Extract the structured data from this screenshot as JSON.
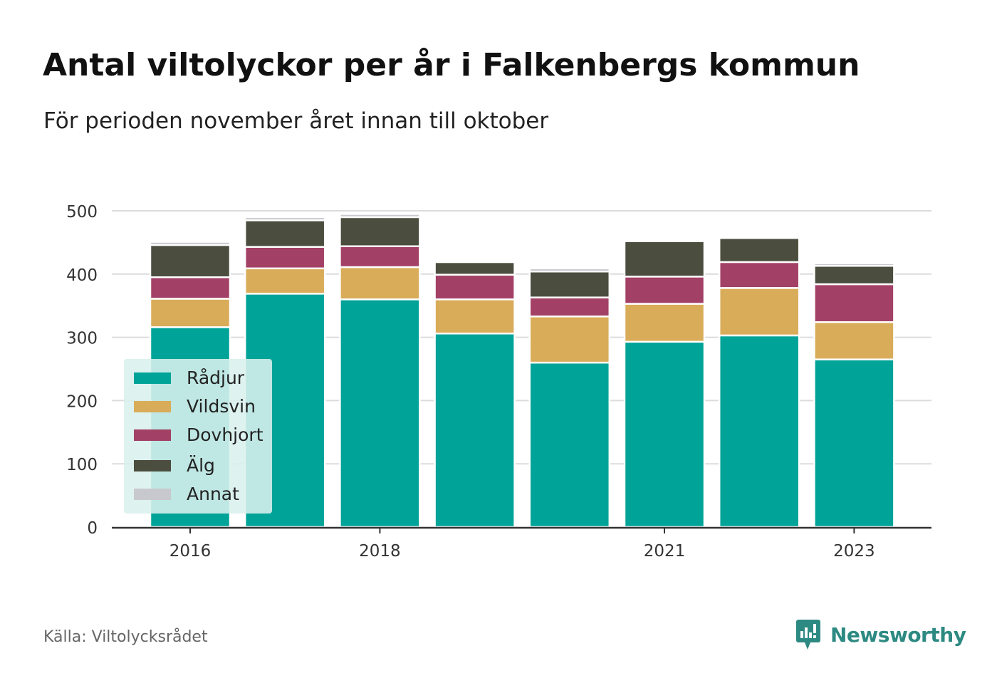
{
  "title": "Antal viltolyckor per år i Falkenbergs kommun",
  "subtitle": "För perioden november året innan till oktober",
  "source": "Källa: Viltolycksrådet",
  "brand": "Newsworthy",
  "chart_data": {
    "type": "bar",
    "stacked": true,
    "title": "Antal viltolyckor per år i Falkenbergs kommun",
    "subtitle": "För perioden november året innan till oktober",
    "xlabel": "",
    "ylabel": "",
    "x": [
      2016,
      2017,
      2018,
      2019,
      2020,
      2021,
      2022,
      2023
    ],
    "x_tick_labels": [
      "2016",
      "2018",
      "2021",
      "2023"
    ],
    "x_tick_values": [
      2016,
      2018,
      2021,
      2023
    ],
    "y_ticks": [
      0,
      100,
      200,
      300,
      400,
      500
    ],
    "ylim": [
      0,
      500
    ],
    "grid": true,
    "legend_position": "bottom-left",
    "series": [
      {
        "name": "Rådjur",
        "color": "#00a398",
        "values": [
          316,
          369,
          360,
          306,
          260,
          293,
          303,
          265
        ]
      },
      {
        "name": "Vildsvin",
        "color": "#d9ac59",
        "values": [
          45,
          40,
          51,
          54,
          73,
          60,
          75,
          59
        ]
      },
      {
        "name": "Dovhjort",
        "color": "#a34066",
        "values": [
          34,
          34,
          33,
          39,
          30,
          43,
          41,
          60
        ]
      },
      {
        "name": "Älg",
        "color": "#4b4d3e",
        "values": [
          51,
          42,
          46,
          20,
          41,
          56,
          38,
          29
        ]
      },
      {
        "name": "Annat",
        "color": "#c8c9ce",
        "values": [
          5,
          5,
          5,
          1,
          5,
          1,
          2,
          4
        ]
      }
    ]
  }
}
